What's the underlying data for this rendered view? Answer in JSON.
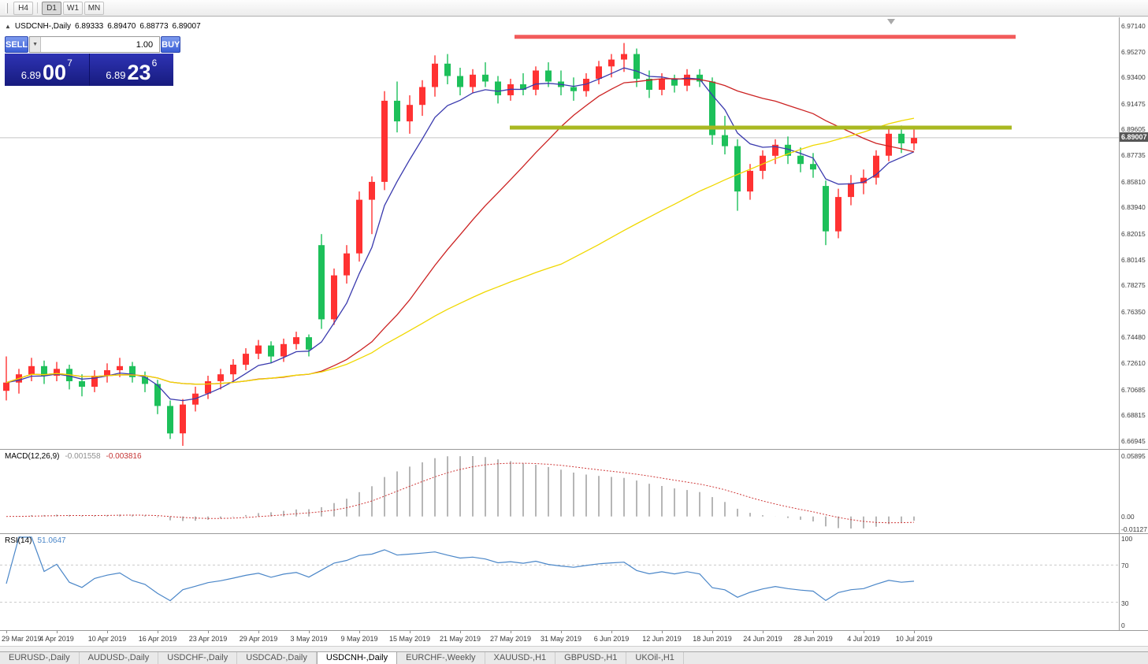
{
  "toolbar": {
    "timeframes": [
      "H4",
      "D1",
      "W1",
      "MN"
    ],
    "active_timeframe": "D1"
  },
  "chart": {
    "collapse_icon": "▲",
    "symbol_label": "USDCNH-,Daily",
    "open": "6.89333",
    "high": "6.89470",
    "low": "6.88773",
    "close": "6.89007"
  },
  "one_click": {
    "sell_label": "SELL",
    "buy_label": "BUY",
    "volume": "1.00",
    "bid": {
      "small": "6.89",
      "big": "00",
      "sup": "7"
    },
    "ask": {
      "small": "6.89",
      "big": "23",
      "sup": "6"
    }
  },
  "chart_data": {
    "type": "candlestick",
    "symbol": "USDCNH",
    "timeframe": "Daily",
    "title": "USDCNH-,Daily",
    "current_price": 6.89007,
    "y_range": [
      6.6637,
      6.9777
    ],
    "y_axis_ticks": [
      "6.97140",
      "6.95270",
      "6.93400",
      "6.91475",
      "6.89605",
      "6.87735",
      "6.85810",
      "6.83940",
      "6.82015",
      "6.80145",
      "6.78275",
      "6.76350",
      "6.74480",
      "6.72610",
      "6.70685",
      "6.68815",
      "6.66945"
    ],
    "x_axis_labels": [
      {
        "i": 0,
        "t": "29 Mar 2019"
      },
      {
        "i": 4,
        "t": "4 Apr 2019"
      },
      {
        "i": 8,
        "t": "10 Apr 2019"
      },
      {
        "i": 12,
        "t": "16 Apr 2019"
      },
      {
        "i": 16,
        "t": "23 Apr 2019"
      },
      {
        "i": 20,
        "t": "29 Apr 2019"
      },
      {
        "i": 24,
        "t": "3 May 2019"
      },
      {
        "i": 28,
        "t": "9 May 2019"
      },
      {
        "i": 32,
        "t": "15 May 2019"
      },
      {
        "i": 36,
        "t": "21 May 2019"
      },
      {
        "i": 40,
        "t": "27 May 2019"
      },
      {
        "i": 44,
        "t": "31 May 2019"
      },
      {
        "i": 48,
        "t": "6 Jun 2019"
      },
      {
        "i": 52,
        "t": "12 Jun 2019"
      },
      {
        "i": 56,
        "t": "18 Jun 2019"
      },
      {
        "i": 60,
        "t": "24 Jun 2019"
      },
      {
        "i": 64,
        "t": "28 Jun 2019"
      },
      {
        "i": 68,
        "t": "4 Jul 2019"
      },
      {
        "i": 72,
        "t": "10 Jul 2019"
      }
    ],
    "candles": [
      [
        6.706,
        6.731,
        6.699,
        6.712
      ],
      [
        6.712,
        6.722,
        6.704,
        6.718
      ],
      [
        6.718,
        6.73,
        6.713,
        6.724
      ],
      [
        6.724,
        6.728,
        6.711,
        6.717
      ],
      [
        6.717,
        6.727,
        6.713,
        6.722
      ],
      [
        6.722,
        6.725,
        6.707,
        6.713
      ],
      [
        6.713,
        6.718,
        6.702,
        6.709
      ],
      [
        6.709,
        6.721,
        6.705,
        6.717
      ],
      [
        6.717,
        6.726,
        6.712,
        6.721
      ],
      [
        6.721,
        6.73,
        6.716,
        6.724
      ],
      [
        6.724,
        6.727,
        6.712,
        6.716
      ],
      [
        6.716,
        6.72,
        6.705,
        6.711
      ],
      [
        6.711,
        6.714,
        6.689,
        6.695
      ],
      [
        6.695,
        6.699,
        6.671,
        6.675
      ],
      [
        6.675,
        6.7,
        6.666,
        6.696
      ],
      [
        6.696,
        6.709,
        6.691,
        6.704
      ],
      [
        6.704,
        6.717,
        6.7,
        6.713
      ],
      [
        6.713,
        6.722,
        6.707,
        6.718
      ],
      [
        6.718,
        6.729,
        6.713,
        6.725
      ],
      [
        6.725,
        6.737,
        6.721,
        6.733
      ],
      [
        6.733,
        6.743,
        6.729,
        6.739
      ],
      [
        6.739,
        6.742,
        6.726,
        6.731
      ],
      [
        6.731,
        6.744,
        6.727,
        6.74
      ],
      [
        6.74,
        6.749,
        6.736,
        6.745
      ],
      [
        6.745,
        6.747,
        6.731,
        6.736
      ],
      [
        6.812,
        6.82,
        6.751,
        6.758
      ],
      [
        6.758,
        6.795,
        6.754,
        6.79
      ],
      [
        6.79,
        6.812,
        6.784,
        6.806
      ],
      [
        6.806,
        6.851,
        6.8,
        6.845
      ],
      [
        6.845,
        6.862,
        6.82,
        6.858
      ],
      [
        6.858,
        6.924,
        6.852,
        6.917
      ],
      [
        6.917,
        6.931,
        6.894,
        6.902
      ],
      [
        6.902,
        6.921,
        6.893,
        6.914
      ],
      [
        6.914,
        6.932,
        6.906,
        6.927
      ],
      [
        6.927,
        6.95,
        6.92,
        6.944
      ],
      [
        6.944,
        6.951,
        6.929,
        6.935
      ],
      [
        6.935,
        6.941,
        6.921,
        6.927
      ],
      [
        6.927,
        6.94,
        6.923,
        6.936
      ],
      [
        6.936,
        6.945,
        6.927,
        6.931
      ],
      [
        6.931,
        6.935,
        6.915,
        6.921
      ],
      [
        6.921,
        6.933,
        6.917,
        6.929
      ],
      [
        6.929,
        6.937,
        6.921,
        6.925
      ],
      [
        6.925,
        6.942,
        6.921,
        6.939
      ],
      [
        6.939,
        6.945,
        6.927,
        6.931
      ],
      [
        6.931,
        6.939,
        6.921,
        6.927
      ],
      [
        6.927,
        6.934,
        6.917,
        6.924
      ],
      [
        6.924,
        6.937,
        6.92,
        6.933
      ],
      [
        6.933,
        6.946,
        6.929,
        6.942
      ],
      [
        6.942,
        6.951,
        6.934,
        6.947
      ],
      [
        6.947,
        6.959,
        6.938,
        6.951
      ],
      [
        6.951,
        6.955,
        6.927,
        6.933
      ],
      [
        6.933,
        6.939,
        6.919,
        6.925
      ],
      [
        6.925,
        6.937,
        6.921,
        6.933
      ],
      [
        6.933,
        6.936,
        6.923,
        6.928
      ],
      [
        6.928,
        6.94,
        6.924,
        6.936
      ],
      [
        6.936,
        6.94,
        6.927,
        6.931
      ],
      [
        6.931,
        6.934,
        6.885,
        6.892
      ],
      [
        6.892,
        6.906,
        6.878,
        6.884
      ],
      [
        6.884,
        6.889,
        6.837,
        6.851
      ],
      [
        6.851,
        6.871,
        6.845,
        6.866
      ],
      [
        6.866,
        6.881,
        6.86,
        6.877
      ],
      [
        6.877,
        6.889,
        6.871,
        6.885
      ],
      [
        6.885,
        6.891,
        6.871,
        6.877
      ],
      [
        6.877,
        6.883,
        6.865,
        6.871
      ],
      [
        6.871,
        6.879,
        6.861,
        6.867
      ],
      [
        6.855,
        6.859,
        6.812,
        6.822
      ],
      [
        6.822,
        6.853,
        6.817,
        6.847
      ],
      [
        6.847,
        6.863,
        6.841,
        6.857
      ],
      [
        6.857,
        6.867,
        6.849,
        6.861
      ],
      [
        6.861,
        6.881,
        6.856,
        6.877
      ],
      [
        6.877,
        6.897,
        6.873,
        6.893
      ],
      [
        6.893,
        6.899,
        6.879,
        6.886
      ],
      [
        6.886,
        6.897,
        6.881,
        6.89
      ]
    ],
    "overlays": [
      {
        "name": "fast",
        "method": "ema",
        "period": 6,
        "color": "#3a3aae"
      },
      {
        "name": "mid",
        "method": "sma",
        "period": 20,
        "color": "#cc2222"
      },
      {
        "name": "slow",
        "method": "sma",
        "period": 45,
        "color": "#f0d800"
      }
    ],
    "hlines": [
      {
        "name": "resistance",
        "price": 6.9635,
        "x1f": 0.4598,
        "x2f": 0.9077,
        "width": 5,
        "color": "#f25b5b"
      },
      {
        "name": "support",
        "price": 6.8975,
        "x1f": 0.4556,
        "x2f": 0.9042,
        "width": 5,
        "color": "#a9b821"
      }
    ],
    "colors": {
      "bull": "#ff3232",
      "bear": "#1dc05a",
      "price_line": "#c4c4c4",
      "macd_hist": "#b6b6b6",
      "macd_signal": "#cf3a3a",
      "rsi": "#4a86c8"
    },
    "indicators": {
      "macd": {
        "label": "MACD(12,26,9)",
        "fast": 12,
        "slow": 26,
        "signal": 9,
        "value1": "-0.001558",
        "value2": "-0.003816",
        "scale_top": "0.05895",
        "scale_zero": "0.00",
        "scale_bottom": "-0.01127"
      },
      "rsi": {
        "label": "RSI(14)",
        "period": 14,
        "value": "51.0647",
        "levels": [
          70,
          30
        ],
        "scale": [
          "100",
          "70",
          "30",
          "0"
        ]
      }
    }
  },
  "tab_bar": {
    "tabs": [
      {
        "label": "EURUSD-,Daily",
        "active": false
      },
      {
        "label": "AUDUSD-,Daily",
        "active": false
      },
      {
        "label": "USDCHF-,Daily",
        "active": false
      },
      {
        "label": "USDCAD-,Daily",
        "active": false
      },
      {
        "label": "USDCNH-,Daily",
        "active": true
      },
      {
        "label": "EURCHF-,Weekly",
        "active": false
      },
      {
        "label": "XAUUSD-,H1",
        "active": false
      },
      {
        "label": "GBPUSD-,H1",
        "active": false
      },
      {
        "label": "UKOil-,H1",
        "active": false
      }
    ]
  }
}
